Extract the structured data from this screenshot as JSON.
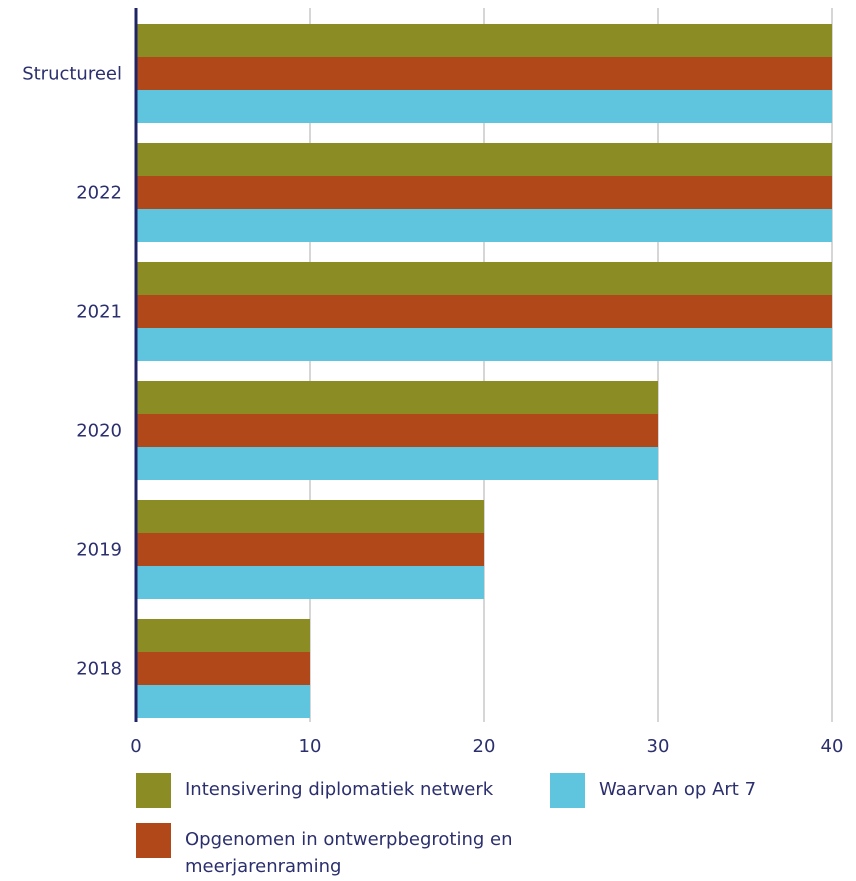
{
  "chart_data": {
    "type": "bar",
    "orientation": "horizontal",
    "categories": [
      "Structureel",
      "2022",
      "2021",
      "2020",
      "2019",
      "2018"
    ],
    "series": [
      {
        "name": "Intensivering diplomatiek netwerk",
        "color": "#8b8c23",
        "values": [
          40,
          40,
          40,
          30,
          20,
          10
        ]
      },
      {
        "name": "Opgenomen in ontwerpbegroting en meerjarenraming",
        "color": "#b14819",
        "values": [
          40,
          40,
          40,
          30,
          20,
          10
        ]
      },
      {
        "name": "Waarvan op Art 7",
        "color": "#5fc5de",
        "values": [
          40,
          40,
          40,
          30,
          20,
          10
        ]
      }
    ],
    "xlim": [
      0,
      40
    ],
    "xticks": [
      "0",
      "10",
      "20",
      "30",
      "40"
    ],
    "xlabel": "",
    "ylabel": "",
    "title": "",
    "grid": true,
    "legend_position": "bottom"
  },
  "colors": {
    "axis": "#1f2466",
    "grid": "#c8c8c8",
    "text": "#2b2f6e"
  }
}
